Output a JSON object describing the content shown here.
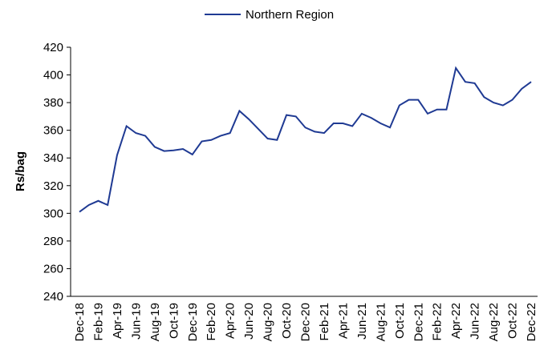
{
  "chart_data": {
    "type": "line",
    "y_label": "Rs/bag",
    "categories": [
      "Dec-18",
      null,
      "Feb-19",
      null,
      "Apr-19",
      null,
      "Jun-19",
      null,
      "Aug-19",
      null,
      "Oct-19",
      null,
      "Dec-19",
      null,
      "Feb-20",
      null,
      "Apr-20",
      null,
      "Jun-20",
      null,
      "Aug-20",
      null,
      "Oct-20",
      null,
      "Dec-20",
      null,
      "Feb-21",
      null,
      "Apr-21",
      null,
      "Jun-21",
      null,
      "Aug-21",
      null,
      "Oct-21",
      null,
      "Dec-21",
      null,
      "Feb-22",
      null,
      "Apr-22",
      null,
      "Jun-22",
      null,
      "Aug-22",
      null,
      "Oct-22",
      null,
      "Dec-22"
    ],
    "series": [
      {
        "name": "Northern Region",
        "color": "#1f3a93",
        "values": [
          301,
          306,
          309,
          306,
          342,
          363,
          358,
          356,
          348,
          345,
          345.5,
          346.5,
          342.5,
          352,
          353,
          356,
          358,
          374,
          368,
          361,
          354,
          353,
          371,
          370,
          362,
          359,
          358,
          365,
          365,
          363,
          372,
          369,
          365,
          362,
          378,
          382,
          382,
          372,
          375,
          375,
          405,
          395,
          394,
          384,
          380,
          378,
          382,
          390,
          395
        ]
      }
    ],
    "ylim": [
      240,
      420
    ],
    "yticks": [
      240,
      260,
      280,
      300,
      320,
      340,
      360,
      380,
      400,
      420
    ],
    "legend": "top"
  }
}
